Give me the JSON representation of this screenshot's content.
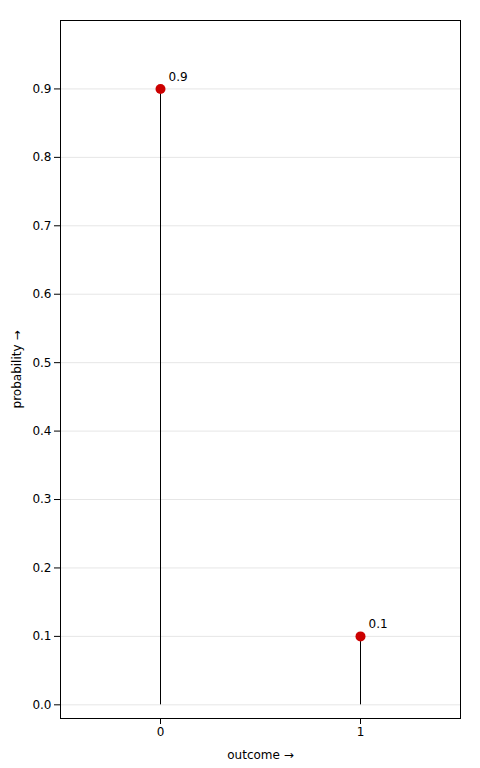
{
  "chart_data": {
    "type": "stem",
    "x": [
      0,
      1
    ],
    "values": [
      0.9,
      0.1
    ],
    "xlabel": "outcome",
    "ylabel": "probability",
    "xlim": [
      -0.5,
      1.5
    ],
    "ylim": [
      -0.02,
      1.0
    ],
    "xticks": [
      0,
      1
    ],
    "yticks": [
      {
        "value": 0,
        "label": "0.0"
      },
      0.1,
      0.2,
      0.3,
      0.4,
      0.5,
      0.6,
      0.7,
      0.8,
      0.9
    ],
    "grid": true,
    "data_labels": true,
    "color": "#cc0000"
  }
}
